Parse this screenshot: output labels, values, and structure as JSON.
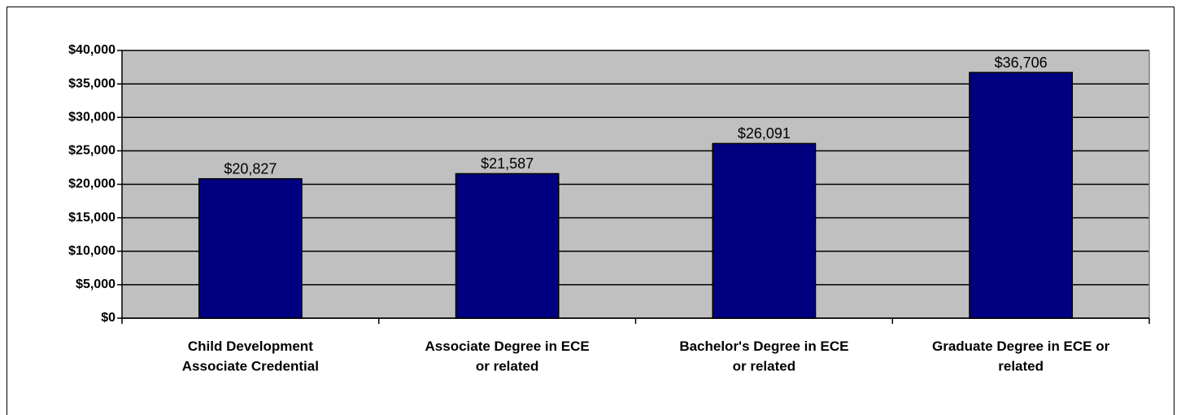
{
  "chart_data": {
    "type": "bar",
    "categories": [
      "Child Development\nAssociate Credential",
      "Associate Degree in ECE\nor related",
      "Bachelor's Degree in ECE\nor related",
      "Graduate Degree in ECE or\nrelated"
    ],
    "values": [
      20827,
      21587,
      26091,
      36706
    ],
    "value_labels": [
      "$20,827",
      "$21,587",
      "$26,091",
      "$36,706"
    ],
    "color": "#000080",
    "ylim": [
      0,
      40000
    ],
    "yticks": [
      {
        "value": 0,
        "label": "$0"
      },
      {
        "value": 5000,
        "label": "$5,000"
      },
      {
        "value": 10000,
        "label": "$10,000"
      },
      {
        "value": 15000,
        "label": "$15,000"
      },
      {
        "value": 20000,
        "label": "$20,000"
      },
      {
        "value": 25000,
        "label": "$25,000"
      },
      {
        "value": 30000,
        "label": "$30,000"
      },
      {
        "value": 35000,
        "label": "$35,000"
      },
      {
        "value": 40000,
        "label": "$40,000"
      }
    ],
    "grid": true
  }
}
